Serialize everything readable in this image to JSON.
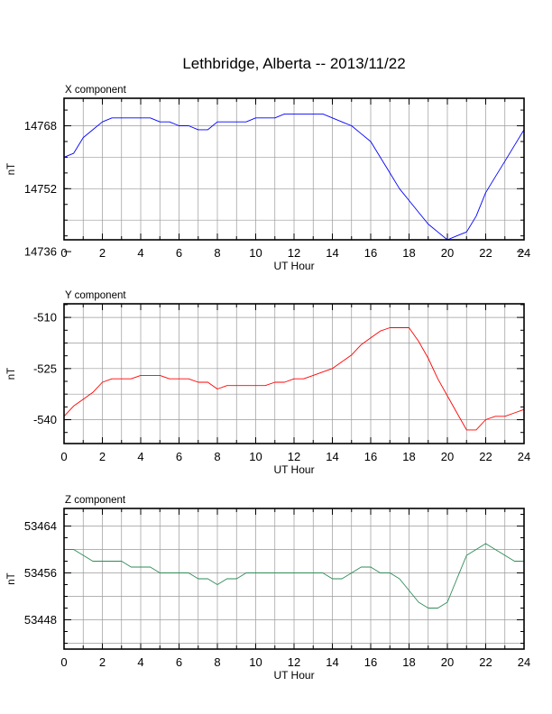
{
  "title": "Lethbridge, Alberta -- 2013/11/22",
  "chart_data": [
    {
      "type": "line",
      "panel_title": "X component",
      "xlabel": "UT Hour",
      "ylabel": "nT",
      "xlim": [
        0,
        24
      ],
      "ylim": [
        14739,
        14775
      ],
      "xticks": [
        0,
        2,
        4,
        6,
        8,
        10,
        12,
        14,
        16,
        18,
        20,
        22,
        24
      ],
      "yticks": [
        14736,
        14752,
        14768
      ],
      "grid": true,
      "color": "#0000ff",
      "series": [
        {
          "x": [
            0,
            0.5,
            1,
            1.5,
            2,
            2.5,
            3,
            3.5,
            4,
            4.5,
            5,
            5.5,
            6,
            6.5,
            7,
            7.5,
            8,
            8.5,
            9,
            9.5,
            10,
            10.5,
            11,
            11.5,
            12,
            12.5,
            13,
            13.5,
            14,
            14.5,
            15,
            15.5,
            16,
            16.5,
            17,
            17.5,
            18,
            18.5,
            19,
            19.5,
            20,
            20.5,
            21,
            21.5,
            22,
            22.5,
            23,
            23.5,
            24
          ],
          "y": [
            14760,
            14761,
            14765,
            14767,
            14769,
            14770,
            14770,
            14770,
            14770,
            14770,
            14769,
            14769,
            14768,
            14768,
            14767,
            14767,
            14769,
            14769,
            14769,
            14769,
            14770,
            14770,
            14770,
            14771,
            14771,
            14771,
            14771,
            14771,
            14770,
            14769,
            14768,
            14766,
            14764,
            14760,
            14756,
            14752,
            14749,
            14746,
            14743,
            14741,
            14739,
            14740,
            14741,
            14745,
            14751,
            14755,
            14759,
            14763,
            14767
          ]
        }
      ]
    },
    {
      "type": "line",
      "panel_title": "Y component",
      "xlabel": "UT Hour",
      "ylabel": "nT",
      "xlim": [
        0,
        24
      ],
      "ylim": [
        -547,
        -506
      ],
      "xticks": [
        0,
        2,
        4,
        6,
        8,
        10,
        12,
        14,
        16,
        18,
        20,
        22,
        24
      ],
      "yticks": [
        -510,
        -525,
        -540
      ],
      "grid": true,
      "color": "#ff0000",
      "series": [
        {
          "x": [
            0,
            0.5,
            1,
            1.5,
            2,
            2.5,
            3,
            3.5,
            4,
            4.5,
            5,
            5.5,
            6,
            6.5,
            7,
            7.5,
            8,
            8.5,
            9,
            9.5,
            10,
            10.5,
            11,
            11.5,
            12,
            12.5,
            13,
            13.5,
            14,
            14.5,
            15,
            15.5,
            16,
            16.5,
            17,
            17.5,
            18,
            18.5,
            19,
            19.5,
            20,
            20.5,
            21,
            21.5,
            22,
            22.5,
            23,
            23.5,
            24
          ],
          "y": [
            -539,
            -536,
            -534,
            -532,
            -529,
            -528,
            -528,
            -528,
            -527,
            -527,
            -527,
            -528,
            -528,
            -528,
            -529,
            -529,
            -531,
            -530,
            -530,
            -530,
            -530,
            -530,
            -529,
            -529,
            -528,
            -528,
            -527,
            -526,
            -525,
            -523,
            -521,
            -518,
            -516,
            -514,
            -513,
            -513,
            -513,
            -517,
            -522,
            -528,
            -533,
            -538,
            -543,
            -543,
            -540,
            -539,
            -539,
            -538,
            -537
          ]
        }
      ]
    },
    {
      "type": "line",
      "panel_title": "Z component",
      "xlabel": "UT Hour",
      "ylabel": "nT",
      "xlim": [
        0,
        24
      ],
      "ylim": [
        53443,
        53467
      ],
      "xticks": [
        0,
        2,
        4,
        6,
        8,
        10,
        12,
        14,
        16,
        18,
        20,
        22,
        24
      ],
      "yticks": [
        53448,
        53456,
        53464
      ],
      "grid": true,
      "color": "#2e8b57",
      "series": [
        {
          "x": [
            0,
            0.5,
            1,
            1.5,
            2,
            2.5,
            3,
            3.5,
            4,
            4.5,
            5,
            5.5,
            6,
            6.5,
            7,
            7.5,
            8,
            8.5,
            9,
            9.5,
            10,
            10.5,
            11,
            11.5,
            12,
            12.5,
            13,
            13.5,
            14,
            14.5,
            15,
            15.5,
            16,
            16.5,
            17,
            17.5,
            18,
            18.5,
            19,
            19.5,
            20,
            20.5,
            21,
            21.5,
            22,
            22.5,
            23,
            23.5,
            24
          ],
          "y": [
            53460,
            53460,
            53459,
            53458,
            53458,
            53458,
            53458,
            53457,
            53457,
            53457,
            53456,
            53456,
            53456,
            53456,
            53455,
            53455,
            53454,
            53455,
            53455,
            53456,
            53456,
            53456,
            53456,
            53456,
            53456,
            53456,
            53456,
            53456,
            53455,
            53455,
            53456,
            53457,
            53457,
            53456,
            53456,
            53455,
            53453,
            53451,
            53450,
            53450,
            53451,
            53455,
            53459,
            53460,
            53461,
            53460,
            53459,
            53458,
            53458
          ]
        }
      ]
    }
  ]
}
